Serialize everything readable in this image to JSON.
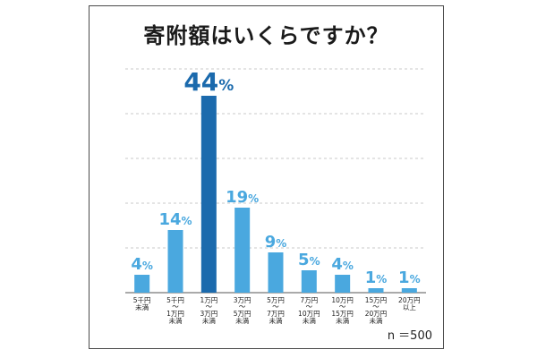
{
  "chart_data": {
    "type": "bar",
    "title": "寄附額はいくらですか？",
    "categories": [
      [
        "5千円",
        "未満"
      ],
      [
        "5千円",
        "〜",
        "1万円",
        "未満"
      ],
      [
        "1万円",
        "〜",
        "3万円",
        "未満"
      ],
      [
        "3万円",
        "〜",
        "5万円",
        "未満"
      ],
      [
        "5万円",
        "〜",
        "7万円",
        "未満"
      ],
      [
        "7万円",
        "〜",
        "10万円",
        "未満"
      ],
      [
        "10万円",
        "〜",
        "15万円",
        "未満"
      ],
      [
        "15万円",
        "〜",
        "20万円",
        "未満"
      ],
      [
        "20万円",
        "以上"
      ]
    ],
    "values": [
      4,
      14,
      44,
      19,
      9,
      5,
      4,
      1,
      1
    ],
    "value_suffix": "%",
    "ylim": [
      0,
      50
    ],
    "grid": true,
    "highlight_index": 2,
    "colors": {
      "bar": "#4aa8df",
      "highlight": "#1b6aad",
      "label": "#4aa8df",
      "highlight_label": "#1b6aad",
      "grid": "#c8c8c8",
      "axis": "#555555"
    }
  },
  "sample_size": "n ＝500"
}
